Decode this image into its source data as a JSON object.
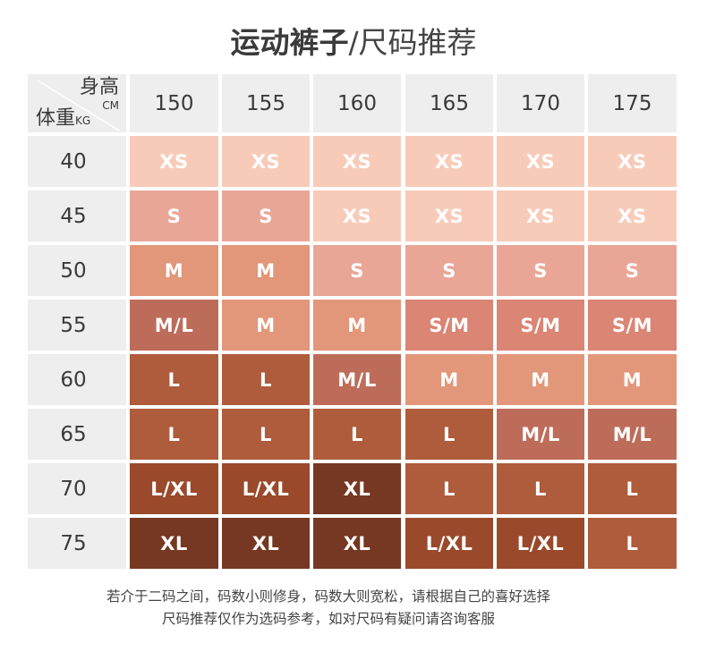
{
  "title": {
    "bold": "运动裤子",
    "regular": "/尺码推荐"
  },
  "corner": {
    "height_label": "身高",
    "height_unit": "CM",
    "weight_label": "体重",
    "weight_unit": "KG"
  },
  "heights": [
    "150",
    "155",
    "160",
    "165",
    "170",
    "175"
  ],
  "weights": [
    "40",
    "45",
    "50",
    "55",
    "60",
    "65",
    "70",
    "75"
  ],
  "sizes": [
    [
      "XS",
      "XS",
      "XS",
      "XS",
      "XS",
      "XS"
    ],
    [
      "S",
      "S",
      "XS",
      "XS",
      "XS",
      "XS"
    ],
    [
      "M",
      "M",
      "S",
      "S",
      "S",
      "S"
    ],
    [
      "M/L",
      "M",
      "M",
      "S/M",
      "S/M",
      "S/M"
    ],
    [
      "L",
      "L",
      "M/L",
      "M",
      "M",
      "M"
    ],
    [
      "L",
      "L",
      "L",
      "L",
      "M/L",
      "M/L"
    ],
    [
      "L/XL",
      "L/XL",
      "XL",
      "L",
      "L",
      "L"
    ],
    [
      "XL",
      "XL",
      "XL",
      "L/XL",
      "L/XL",
      "L"
    ]
  ],
  "size_colors": {
    "XS": "#F8CBB9",
    "S": "#E9A697",
    "M": "#E2977A",
    "S/M": "#DB8574",
    "M/L": "#BE6C5A",
    "L": "#AE5C3B",
    "L/XL": "#9A4A2B",
    "XL": "#763822"
  },
  "header_bg": "#EEEEEE",
  "footer": {
    "line1": "若介于二码之间，码数小则修身，码数大则宽松，请根据自己的喜好选择",
    "line2": "尺码推荐仅作为选码参考，如对尺码有疑问请咨询客服"
  }
}
